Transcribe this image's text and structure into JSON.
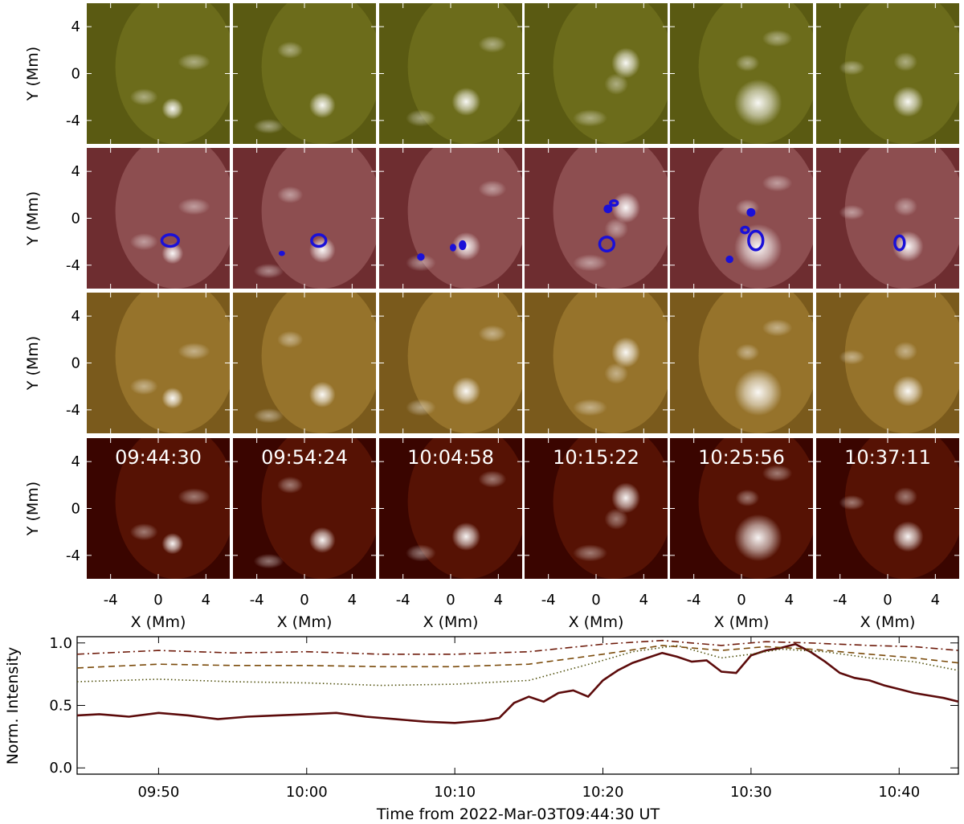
{
  "panels": {
    "timestamps": [
      "09:44:30",
      "09:54:24",
      "10:04:58",
      "10:15:22",
      "10:25:56",
      "10:37:11"
    ],
    "rows": [
      {
        "color_dark": "#5a5a12",
        "color_mid": "#7c7c22",
        "color_bright": "#ffffff"
      },
      {
        "color_dark": "#6e2d30",
        "color_mid": "#a86a6c",
        "color_bright": "#ffffff"
      },
      {
        "color_dark": "#7a5a1c",
        "color_mid": "#ad8838",
        "color_bright": "#ffffff"
      },
      {
        "color_dark": "#3a0500",
        "color_mid": "#6e1e08",
        "color_bright": "#ffffff"
      }
    ],
    "y_label": "Y (Mm)",
    "x_label": "X (Mm)",
    "tick_values": [
      -4,
      0,
      4
    ],
    "tick_labels": [
      "-4",
      "0",
      "4"
    ],
    "contour_color": "#1a10d8",
    "blobs": [
      [
        [
          1.2,
          -3.0,
          0.9,
          0.9
        ],
        [
          -1.2,
          -2.0,
          1.3,
          0.8
        ],
        [
          3.0,
          1.0,
          1.5,
          0.8
        ]
      ],
      [
        [
          1.5,
          -2.7,
          1.1,
          1.1
        ],
        [
          -1.2,
          2.0,
          1.2,
          0.8
        ],
        [
          -3.0,
          -4.5,
          1.4,
          0.7
        ]
      ],
      [
        [
          1.3,
          -2.4,
          1.2,
          1.2
        ],
        [
          3.5,
          2.5,
          1.3,
          0.8
        ],
        [
          -2.5,
          -3.8,
          1.4,
          0.8
        ]
      ],
      [
        [
          2.5,
          0.9,
          1.2,
          1.3
        ],
        [
          1.7,
          -0.9,
          1.1,
          1.0
        ],
        [
          -0.5,
          -3.8,
          1.6,
          0.8
        ]
      ],
      [
        [
          1.4,
          -2.5,
          2.0,
          2.0
        ],
        [
          0.5,
          0.9,
          1.1,
          0.8
        ],
        [
          3.0,
          3.0,
          1.4,
          0.8
        ]
      ],
      [
        [
          1.7,
          -2.4,
          1.3,
          1.3
        ],
        [
          1.5,
          1.0,
          1.1,
          0.9
        ],
        [
          -3.0,
          0.5,
          1.2,
          0.7
        ]
      ]
    ],
    "contours": [
      [
        [
          1.0,
          -1.9,
          0.7,
          0.5
        ]
      ],
      [
        [
          1.2,
          -1.9,
          0.6,
          0.5
        ],
        [
          -1.9,
          -3.0,
          0.15,
          0.1
        ]
      ],
      [
        [
          -2.5,
          -3.3,
          0.2,
          0.2
        ],
        [
          1.0,
          -2.3,
          0.2,
          0.3
        ],
        [
          0.2,
          -2.5,
          0.15,
          0.2
        ]
      ],
      [
        [
          1.0,
          0.8,
          0.25,
          0.25
        ],
        [
          1.5,
          1.3,
          0.3,
          0.2
        ],
        [
          0.9,
          -2.2,
          0.6,
          0.6
        ]
      ],
      [
        [
          0.3,
          -1.0,
          0.3,
          0.25
        ],
        [
          1.2,
          -1.9,
          0.6,
          0.8
        ],
        [
          0.8,
          0.5,
          0.25,
          0.25
        ],
        [
          -1.0,
          -3.5,
          0.2,
          0.2
        ]
      ],
      [
        [
          1.0,
          -2.1,
          0.4,
          0.6
        ]
      ]
    ]
  },
  "chart_data": {
    "type": "line",
    "xlabel": "Time from 2022-Mar-03T09:44:30 UT",
    "ylabel": "Norm. Intensity",
    "ylim": [
      -0.05,
      1.05
    ],
    "x_ticks": [
      "09:50",
      "10:00",
      "10:10",
      "10:20",
      "10:30",
      "10:40"
    ],
    "y_ticks": [
      "0.0",
      "0.5",
      "1.0"
    ],
    "series": [
      {
        "style": "solid",
        "color": "#5c0b0b",
        "x": [
          "09:44:30",
          "09:46",
          "09:48",
          "09:50",
          "09:52",
          "09:54",
          "09:56",
          "09:58",
          "10:00",
          "10:02",
          "10:04",
          "10:06",
          "10:08",
          "10:10",
          "10:12",
          "10:13",
          "10:14",
          "10:15",
          "10:16",
          "10:17",
          "10:18",
          "10:19",
          "10:20",
          "10:21",
          "10:22",
          "10:23",
          "10:24",
          "10:25",
          "10:26",
          "10:27",
          "10:28",
          "10:29",
          "10:30",
          "10:31",
          "10:32",
          "10:33",
          "10:34",
          "10:35",
          "10:36",
          "10:37",
          "10:38",
          "10:39",
          "10:40",
          "10:41",
          "10:42",
          "10:43",
          "10:44"
        ],
        "y": [
          0.42,
          0.43,
          0.41,
          0.44,
          0.42,
          0.39,
          0.41,
          0.42,
          0.43,
          0.44,
          0.41,
          0.39,
          0.37,
          0.36,
          0.38,
          0.4,
          0.52,
          0.57,
          0.53,
          0.6,
          0.62,
          0.57,
          0.7,
          0.78,
          0.84,
          0.88,
          0.92,
          0.89,
          0.85,
          0.86,
          0.77,
          0.76,
          0.9,
          0.94,
          0.96,
          0.99,
          0.93,
          0.85,
          0.76,
          0.72,
          0.7,
          0.66,
          0.63,
          0.6,
          0.58,
          0.56,
          0.53
        ]
      },
      {
        "style": "dotted",
        "color": "#4e4e0a",
        "x": [
          "09:44:30",
          "09:50",
          "09:55",
          "10:00",
          "10:05",
          "10:10",
          "10:15",
          "10:20",
          "10:22",
          "10:25",
          "10:28",
          "10:30",
          "10:32",
          "10:35",
          "10:38",
          "10:41",
          "10:44"
        ],
        "y": [
          0.69,
          0.71,
          0.69,
          0.68,
          0.66,
          0.67,
          0.7,
          0.86,
          0.93,
          0.98,
          0.88,
          0.91,
          0.95,
          0.93,
          0.88,
          0.85,
          0.78
        ]
      },
      {
        "style": "dashed",
        "color": "#7a4a0a",
        "x": [
          "09:44:30",
          "09:50",
          "09:55",
          "10:00",
          "10:05",
          "10:10",
          "10:15",
          "10:20",
          "10:24",
          "10:28",
          "10:31",
          "10:34",
          "10:38",
          "10:41",
          "10:44"
        ],
        "y": [
          0.8,
          0.83,
          0.82,
          0.82,
          0.81,
          0.81,
          0.83,
          0.91,
          0.98,
          0.94,
          0.97,
          0.95,
          0.91,
          0.88,
          0.84
        ]
      },
      {
        "style": "dashdot",
        "color": "#6e1b0b",
        "x": [
          "09:44:30",
          "09:50",
          "09:55",
          "10:00",
          "10:05",
          "10:10",
          "10:15",
          "10:20",
          "10:24",
          "10:28",
          "10:31",
          "10:34",
          "10:38",
          "10:41",
          "10:44"
        ],
        "y": [
          0.91,
          0.94,
          0.92,
          0.93,
          0.91,
          0.91,
          0.93,
          0.99,
          1.02,
          0.98,
          1.01,
          1.0,
          0.98,
          0.97,
          0.94
        ]
      }
    ]
  }
}
